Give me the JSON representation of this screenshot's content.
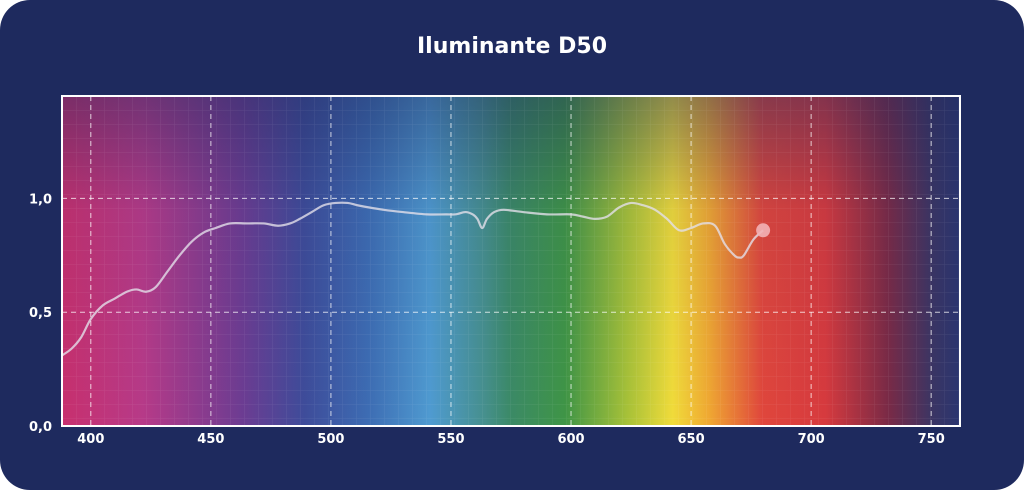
{
  "chart_data": {
    "type": "line",
    "title": "Iluminante D50",
    "xlabel": "",
    "ylabel": "",
    "xlim": [
      388,
      762
    ],
    "ylim": [
      0,
      1.45
    ],
    "x_ticks": [
      400,
      450,
      500,
      550,
      600,
      650,
      700,
      750
    ],
    "x_tick_labels": [
      "400",
      "450",
      "500",
      "550",
      "600",
      "650",
      "700",
      "750"
    ],
    "y_ticks": [
      0,
      0.5,
      1.0
    ],
    "y_tick_labels": [
      "0,0",
      "0,5",
      "1,0"
    ],
    "grid": true,
    "background": "visible spectrum gradient",
    "series": [
      {
        "color": "#e3e0ea",
        "x": [
          388,
          392,
          396,
          400,
          405,
          410,
          415,
          419,
          423,
          427,
          432,
          437,
          442,
          447,
          452,
          458,
          465,
          472,
          478,
          483,
          487,
          492,
          497,
          502,
          507,
          511,
          516,
          522,
          530,
          540,
          548,
          552,
          556,
          559,
          561,
          563,
          565,
          568,
          572,
          580,
          590,
          600,
          605,
          610,
          615,
          620,
          625,
          630,
          635,
          640,
          645,
          650,
          655,
          660,
          664,
          668,
          670,
          672,
          676,
          680
        ],
        "y": [
          0.31,
          0.34,
          0.39,
          0.47,
          0.53,
          0.56,
          0.59,
          0.6,
          0.59,
          0.61,
          0.68,
          0.75,
          0.81,
          0.85,
          0.87,
          0.89,
          0.89,
          0.89,
          0.88,
          0.89,
          0.91,
          0.94,
          0.97,
          0.98,
          0.98,
          0.97,
          0.96,
          0.95,
          0.94,
          0.93,
          0.93,
          0.93,
          0.94,
          0.93,
          0.91,
          0.87,
          0.91,
          0.94,
          0.95,
          0.94,
          0.93,
          0.93,
          0.92,
          0.91,
          0.92,
          0.96,
          0.98,
          0.97,
          0.95,
          0.91,
          0.86,
          0.87,
          0.89,
          0.88,
          0.8,
          0.75,
          0.74,
          0.75,
          0.82,
          0.86
        ]
      }
    ]
  }
}
